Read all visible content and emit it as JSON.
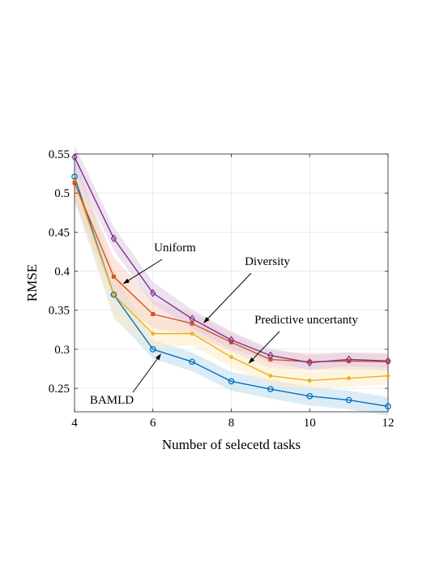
{
  "chart_data": {
    "type": "line",
    "xlabel": "Number of selecetd tasks",
    "ylabel": "RMSE",
    "xlim": [
      4,
      12
    ],
    "ylim": [
      0.22,
      0.55
    ],
    "xticks": [
      4,
      6,
      8,
      10,
      12
    ],
    "yticks": [
      0.25,
      0.3,
      0.35,
      0.4,
      0.45,
      0.5,
      0.55
    ],
    "ytick_labels": [
      "0.25",
      "0.3",
      "0.35",
      "0.4",
      "0.45",
      "0.5",
      "0.55"
    ],
    "grid": true,
    "x": [
      4,
      5,
      6,
      7,
      8,
      9,
      10,
      11,
      12
    ],
    "series": [
      {
        "name": "BAMLD",
        "color": "#0072BD",
        "marker": "circle",
        "values": [
          0.521,
          0.37,
          0.3,
          0.284,
          0.259,
          0.249,
          0.24,
          0.235,
          0.227
        ],
        "band": [
          0.03,
          0.028,
          0.012,
          0.012,
          0.012,
          0.012,
          0.012,
          0.012,
          0.012
        ]
      },
      {
        "name": "Predictive uncertanty",
        "color": "#EDB120",
        "marker": "dot",
        "values": [
          0.515,
          0.37,
          0.32,
          0.32,
          0.29,
          0.266,
          0.26,
          0.263,
          0.266
        ],
        "band": [
          0.02,
          0.032,
          0.018,
          0.015,
          0.013,
          0.011,
          0.011,
          0.011,
          0.011
        ]
      },
      {
        "name": "Uniform",
        "color": "#D95319",
        "marker": "square",
        "values": [
          0.513,
          0.393,
          0.345,
          0.333,
          0.309,
          0.287,
          0.284,
          0.285,
          0.284
        ],
        "band": [
          0.025,
          0.025,
          0.018,
          0.014,
          0.012,
          0.011,
          0.011,
          0.011,
          0.011
        ]
      },
      {
        "name": "Diversity",
        "color": "#7E2F8E",
        "marker": "diamond",
        "values": [
          0.546,
          0.442,
          0.372,
          0.339,
          0.312,
          0.292,
          0.283,
          0.287,
          0.285
        ],
        "band": [
          0.015,
          0.015,
          0.014,
          0.012,
          0.011,
          0.009,
          0.009,
          0.009,
          0.009
        ]
      }
    ],
    "annotations": [
      {
        "text": "Uniform",
        "series": "Uniform",
        "x": 5.25
      },
      {
        "text": "Diversity",
        "series": "Diversity",
        "x": 7.3
      },
      {
        "text": "Predictive uncertanty",
        "series": "Predictive uncertanty",
        "x": 8.45
      },
      {
        "text": "BAMLD",
        "series": "BAMLD",
        "x": 6.2
      }
    ]
  }
}
